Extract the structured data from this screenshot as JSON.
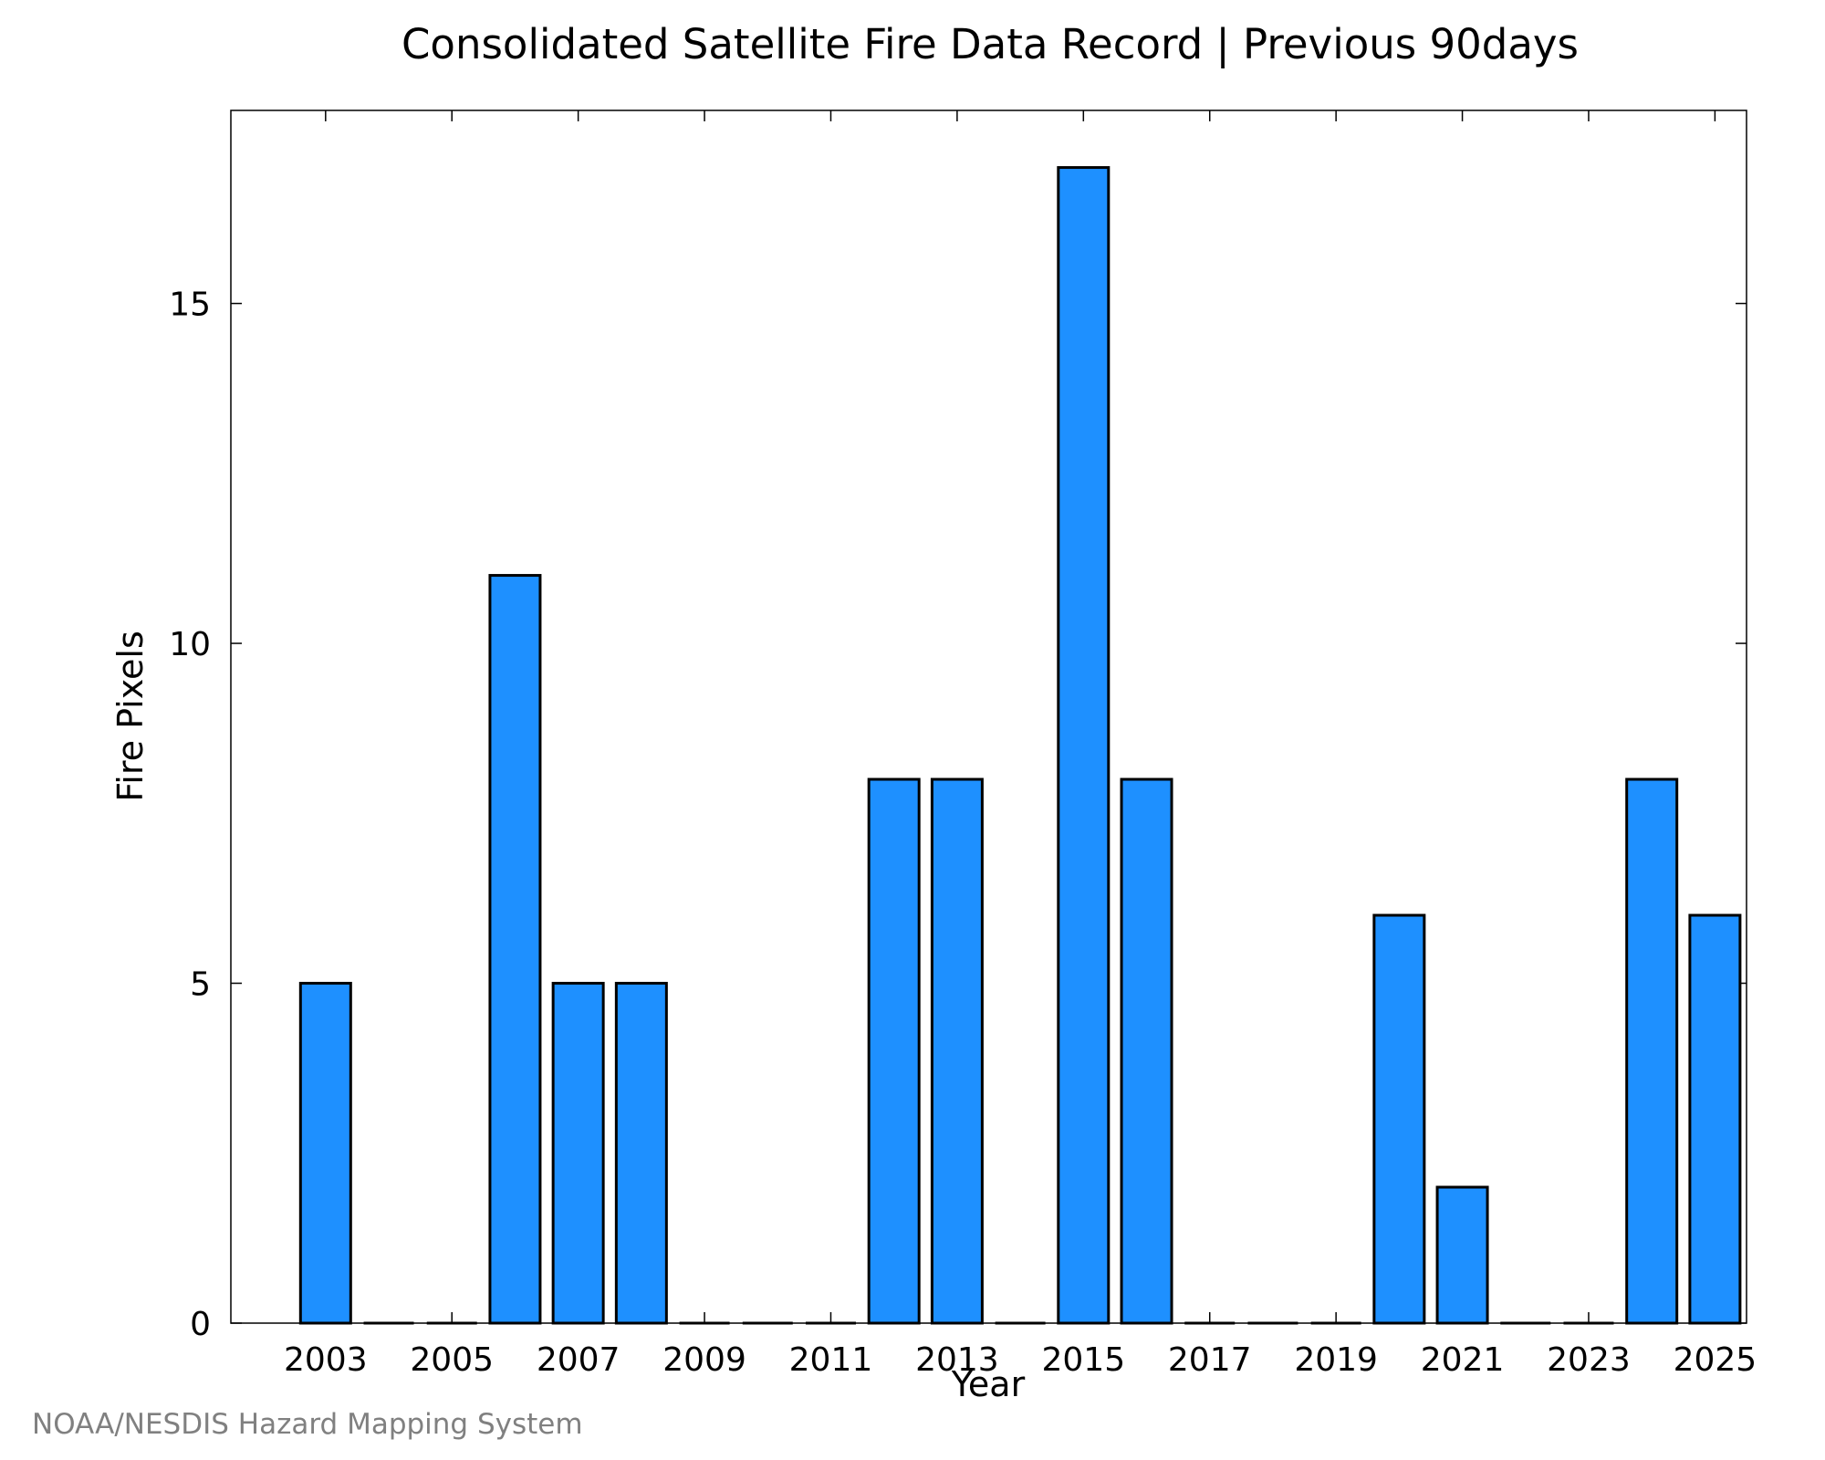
{
  "chart_data": {
    "type": "bar",
    "title": "Consolidated Satellite Fire Data Record | Previous 90days",
    "xlabel": "Year",
    "ylabel": "Fire Pixels",
    "categories": [
      2003,
      2004,
      2005,
      2006,
      2007,
      2008,
      2009,
      2010,
      2011,
      2012,
      2013,
      2014,
      2015,
      2016,
      2017,
      2018,
      2019,
      2020,
      2021,
      2022,
      2023,
      2024,
      2025
    ],
    "values": [
      5,
      0,
      0,
      11,
      5,
      5,
      0,
      0,
      0,
      8,
      8,
      0,
      17,
      8,
      0,
      0,
      0,
      6,
      2,
      0,
      0,
      8,
      6
    ],
    "x_tick_labels": [
      "2003",
      "2005",
      "2007",
      "2009",
      "2011",
      "2013",
      "2015",
      "2017",
      "2019",
      "2021",
      "2023",
      "2025"
    ],
    "y_tick_labels": [
      "0",
      "5",
      "10",
      "15"
    ],
    "y_ticks": [
      0,
      5,
      10,
      15
    ],
    "ylim": [
      0,
      17.84
    ],
    "xlim": [
      2001.5,
      2025.5
    ],
    "grid": false,
    "bar_color": "#1e90ff"
  },
  "credit": "NOAA/NESDIS Hazard Mapping System"
}
